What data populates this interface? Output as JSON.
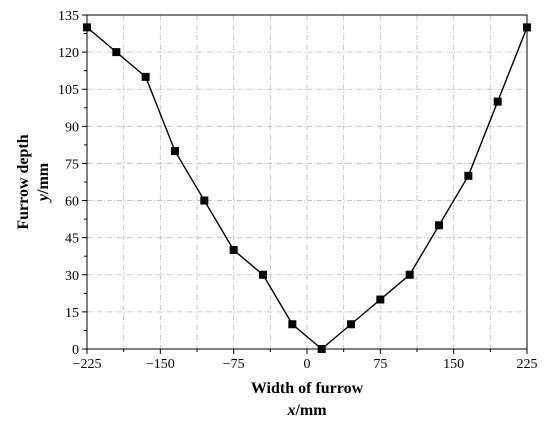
{
  "chart_data": {
    "type": "line",
    "title": "",
    "xlabel": "Width of furrow",
    "xlabel_unit": "x/mm",
    "ylabel": "Furrow depth",
    "ylabel_unit": "y/mm",
    "xlim": [
      -225,
      225
    ],
    "ylim": [
      0,
      135
    ],
    "xticks": [
      -225,
      -150,
      -75,
      0,
      75,
      150,
      225
    ],
    "yticks": [
      0,
      15,
      30,
      45,
      60,
      75,
      90,
      105,
      120,
      135
    ],
    "grid": true,
    "marker": "square",
    "line_color": "#000000",
    "series": [
      {
        "x": [
          -225,
          -195,
          -165,
          -135,
          -105,
          -75,
          -45,
          -15,
          15,
          45,
          75,
          105,
          135,
          165,
          195,
          225
        ],
        "y": [
          130,
          120,
          110,
          80,
          60,
          40,
          30,
          10,
          0,
          10,
          20,
          30,
          50,
          70,
          100,
          130
        ]
      }
    ]
  }
}
